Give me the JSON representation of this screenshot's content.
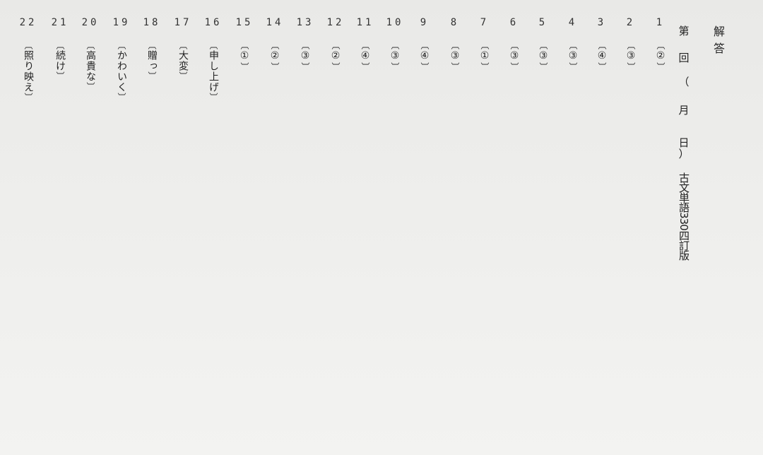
{
  "header": {
    "title": "解答",
    "session": {
      "dai": "第",
      "kai": "回",
      "paren_open": "（",
      "tsuki": "月",
      "hi": "日",
      "paren_close": "）",
      "book": "古文単語330四訂版"
    }
  },
  "brackets": {
    "open": "〔",
    "close": "〕"
  },
  "answers": [
    {
      "num": "1",
      "answer": "②"
    },
    {
      "num": "2",
      "answer": "③"
    },
    {
      "num": "3",
      "answer": "④"
    },
    {
      "num": "4",
      "answer": "③"
    },
    {
      "num": "5",
      "answer": "③"
    },
    {
      "num": "6",
      "answer": "③"
    },
    {
      "num": "7",
      "answer": "①"
    },
    {
      "num": "8",
      "answer": "③"
    },
    {
      "num": "9",
      "answer": "④"
    },
    {
      "num": "10",
      "answer": "③"
    },
    {
      "num": "11",
      "answer": "④"
    },
    {
      "num": "12",
      "answer": "②"
    },
    {
      "num": "13",
      "answer": "③"
    },
    {
      "num": "14",
      "answer": "②"
    },
    {
      "num": "15",
      "answer": "①"
    },
    {
      "num": "16",
      "answer": "申し上げ"
    },
    {
      "num": "17",
      "answer": "大変"
    },
    {
      "num": "18",
      "answer": "贈っ"
    },
    {
      "num": "19",
      "answer": "かわいく"
    },
    {
      "num": "20",
      "answer": "高貴な"
    },
    {
      "num": "21",
      "answer": "続け"
    },
    {
      "num": "22",
      "answer": "照り映え"
    }
  ]
}
